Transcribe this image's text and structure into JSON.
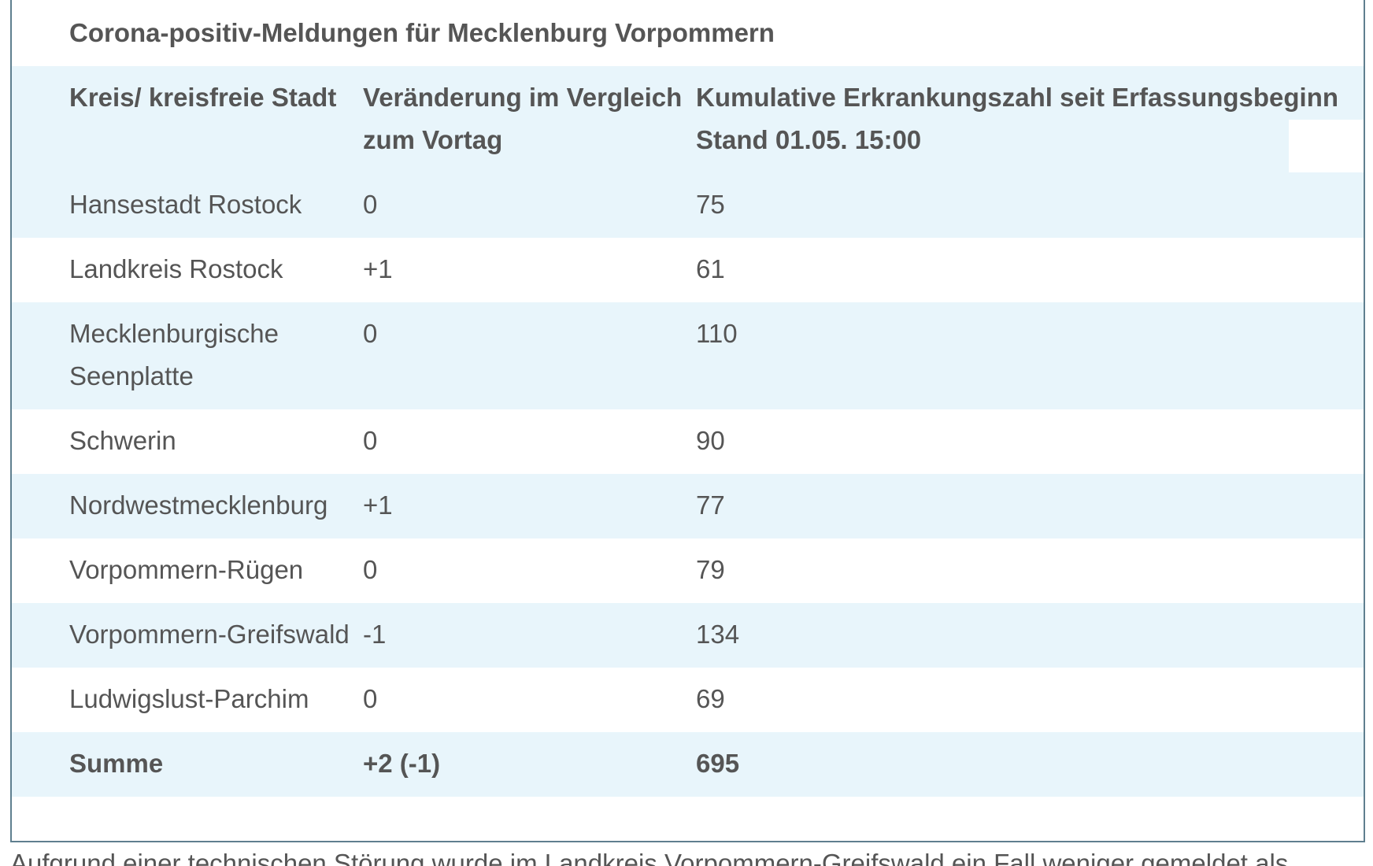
{
  "title": "Corona-positiv-Meldungen für Mecklenburg Vorpommern",
  "table": {
    "header": [
      "Kreis/ kreisfreie Stadt",
      "Veränderung im Vergleich zum Vortag",
      "Kumulative Erkrankungszahl seit Erfassungsbeginn Stand 01.05. 15:00"
    ],
    "rows": [
      [
        "Hansestadt Rostock",
        "0",
        "75"
      ],
      [
        "Landkreis Rostock",
        "+1",
        "61"
      ],
      [
        "Mecklenburgische Seenplatte",
        "0",
        "110"
      ],
      [
        "Schwerin",
        "0",
        "90"
      ],
      [
        "Nordwestmecklenburg",
        "+1",
        "77"
      ],
      [
        "Vorpommern-Rügen",
        "0",
        "79"
      ],
      [
        "Vorpommern-Greifswald",
        "-1",
        "134"
      ],
      [
        "Ludwigslust-Parchim",
        "0",
        "69"
      ],
      [
        "Summe",
        "+2 (-1)",
        "695"
      ]
    ]
  },
  "footnote": "Aufgrund einer technischen Störung wurde im Landkreis Vorpommern-Greifswald ein Fall weniger gemeldet als"
}
